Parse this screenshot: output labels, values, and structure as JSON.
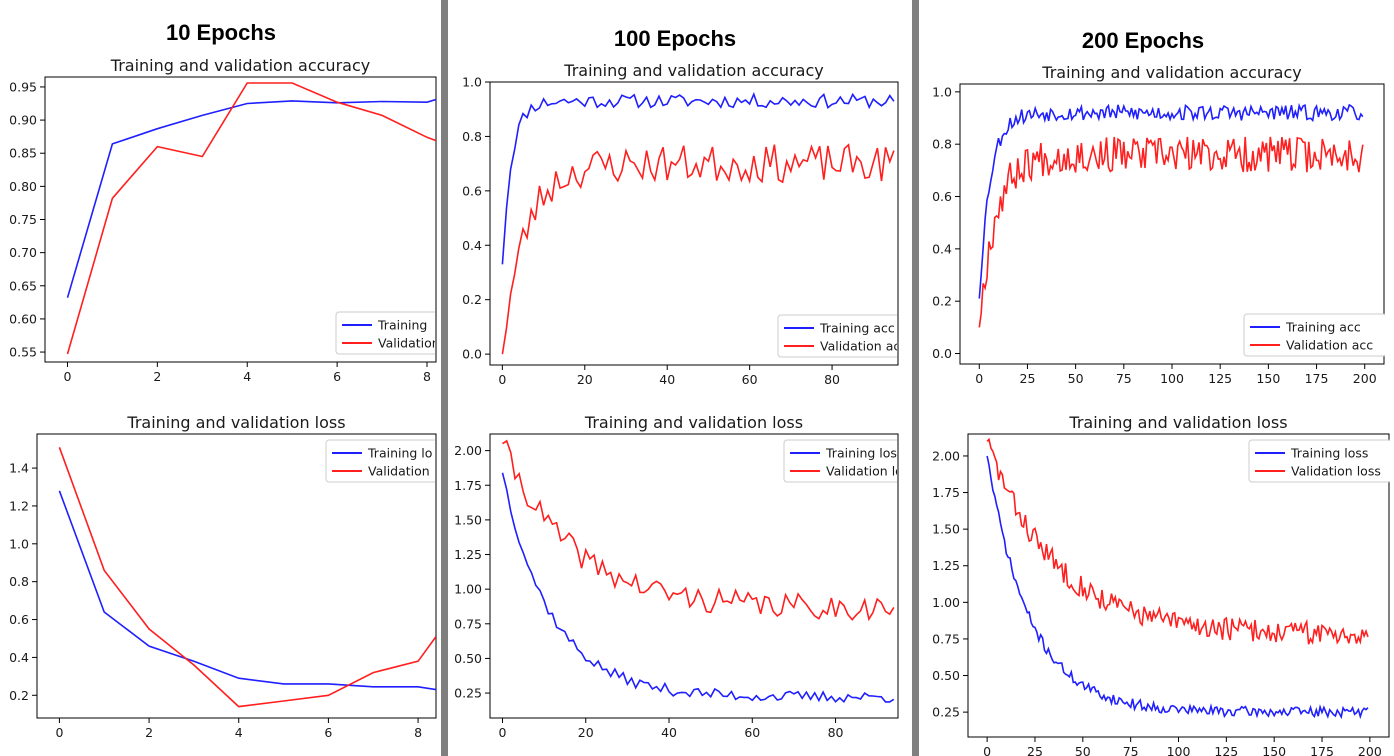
{
  "panels": [
    {
      "heading": "10 Epochs"
    },
    {
      "heading": "100 Epochs"
    },
    {
      "heading": "200 Epochs"
    }
  ],
  "colors": {
    "training": "#1f1fff",
    "validation": "#ff1f1f",
    "separator": "#7f7f7f"
  },
  "chart_data": [
    {
      "type": "line",
      "title": "Training and validation accuracy",
      "panel": "10 Epochs",
      "x_ticks": [
        0,
        2,
        4,
        6,
        8
      ],
      "y_ticks": [
        "0.55",
        "0.60",
        "0.65",
        "0.70",
        "0.75",
        "0.80",
        "0.85",
        "0.90",
        "0.95"
      ],
      "xlim": [
        -0.5,
        8.2
      ],
      "ylim": [
        0.535,
        0.965
      ],
      "legend": "bottom-right",
      "series": [
        {
          "name": "Training",
          "color": "#1f1fff",
          "x": [
            0,
            1,
            2,
            3,
            4,
            5,
            6,
            7,
            8,
            8.2
          ],
          "y": [
            0.632,
            0.864,
            0.887,
            0.907,
            0.925,
            0.929,
            0.926,
            0.928,
            0.927,
            0.931
          ]
        },
        {
          "name": "Validation",
          "color": "#ff1f1f",
          "x": [
            0,
            1,
            2,
            3,
            4,
            5,
            6,
            7,
            8,
            8.2
          ],
          "y": [
            0.547,
            0.782,
            0.86,
            0.845,
            0.956,
            0.956,
            0.927,
            0.907,
            0.874,
            0.869
          ]
        }
      ]
    },
    {
      "type": "line",
      "title": "Training and validation loss",
      "panel": "10 Epochs",
      "x_ticks": [
        0,
        2,
        4,
        6,
        8
      ],
      "y_ticks": [
        "0.2",
        "0.4",
        "0.6",
        "0.8",
        "1.0",
        "1.2",
        "1.4"
      ],
      "xlim": [
        -0.5,
        8.4
      ],
      "ylim": [
        0.08,
        1.58
      ],
      "legend": "top-right",
      "series": [
        {
          "name": "Training lo",
          "color": "#1f1fff",
          "x": [
            0,
            1,
            2,
            3,
            4,
            5,
            6,
            7,
            8,
            8.4
          ],
          "y": [
            1.28,
            0.64,
            0.46,
            0.38,
            0.29,
            0.26,
            0.26,
            0.245,
            0.245,
            0.23
          ]
        },
        {
          "name": "Validation",
          "color": "#ff1f1f",
          "x": [
            0,
            1,
            2,
            3,
            4,
            5,
            6,
            7,
            8,
            8.4
          ],
          "y": [
            1.51,
            0.86,
            0.55,
            0.36,
            0.14,
            0.17,
            0.2,
            0.32,
            0.38,
            0.51
          ]
        }
      ]
    },
    {
      "type": "line",
      "title": "Training and validation accuracy",
      "panel": "100 Epochs",
      "x_ticks": [
        0,
        20,
        40,
        60,
        80
      ],
      "y_ticks": [
        "0.0",
        "0.2",
        "0.4",
        "0.6",
        "0.8",
        "1.0"
      ],
      "xlim": [
        -3,
        96
      ],
      "ylim": [
        -0.04,
        1.0
      ],
      "legend": "bottom-right",
      "series": [
        {
          "name": "Training acc",
          "color": "#1f1fff",
          "generator": {
            "n": 96,
            "seed": 11,
            "model": "acc_train",
            "start": 0.33,
            "plateau": 0.93,
            "rate": 0.45,
            "noise": 0.025
          }
        },
        {
          "name": "Validation acc",
          "color": "#ff1f1f",
          "generator": {
            "n": 96,
            "seed": 23,
            "model": "acc_val",
            "start": 0.0,
            "plateau": 0.7,
            "rate": 0.18,
            "noise": 0.07
          }
        }
      ]
    },
    {
      "type": "line",
      "title": "Training and validation loss",
      "panel": "100 Epochs",
      "x_ticks": [
        0,
        20,
        40,
        60,
        80
      ],
      "y_ticks": [
        "0.25",
        "0.50",
        "0.75",
        "1.00",
        "1.25",
        "1.50",
        "1.75",
        "2.00"
      ],
      "xlim": [
        -3,
        95
      ],
      "ylim": [
        0.07,
        2.12
      ],
      "legend": "top-right",
      "series": [
        {
          "name": "Training loss",
          "color": "#1f1fff",
          "generator": {
            "n": 95,
            "seed": 37,
            "model": "loss_train",
            "start": 1.84,
            "floor": 0.22,
            "rate": 0.085,
            "noise": 0.04
          }
        },
        {
          "name": "Validation loss",
          "color": "#ff1f1f",
          "generator": {
            "n": 95,
            "seed": 41,
            "model": "loss_val",
            "start": 2.05,
            "floor": 0.86,
            "rate": 0.06,
            "noise": 0.09
          }
        }
      ]
    },
    {
      "type": "line",
      "title": "Training and validation accuracy",
      "panel": "200 Epochs",
      "x_ticks": [
        0,
        25,
        50,
        75,
        100,
        125,
        150,
        175,
        200
      ],
      "y_ticks": [
        "0.0",
        "0.2",
        "0.4",
        "0.6",
        "0.8",
        "1.0"
      ],
      "xlim": [
        -10,
        210
      ],
      "ylim": [
        -0.04,
        1.03
      ],
      "legend": "bottom-right",
      "series": [
        {
          "name": "Training acc",
          "color": "#1f1fff",
          "generator": {
            "n": 200,
            "seed": 53,
            "model": "acc_train",
            "start": 0.21,
            "plateau": 0.92,
            "rate": 0.18,
            "noise": 0.03
          }
        },
        {
          "name": "Validation acc",
          "color": "#ff1f1f",
          "generator": {
            "n": 200,
            "seed": 67,
            "model": "acc_val",
            "start": 0.1,
            "plateau": 0.76,
            "rate": 0.12,
            "noise": 0.07
          }
        }
      ]
    },
    {
      "type": "line",
      "title": "Training and validation loss",
      "panel": "200 Epochs",
      "x_ticks": [
        0,
        25,
        50,
        75,
        100,
        125,
        150,
        175,
        200
      ],
      "y_ticks": [
        "0.25",
        "0.50",
        "0.75",
        "1.00",
        "1.25",
        "1.50",
        "1.75",
        "2.00"
      ],
      "xlim": [
        -10,
        210
      ],
      "ylim": [
        0.08,
        2.15
      ],
      "legend": "top-right",
      "series": [
        {
          "name": "Training loss",
          "color": "#1f1fff",
          "generator": {
            "n": 200,
            "seed": 71,
            "model": "loss_train",
            "start": 2.0,
            "floor": 0.25,
            "rate": 0.045,
            "noise": 0.035
          }
        },
        {
          "name": "Validation loss",
          "color": "#ff1f1f",
          "generator": {
            "n": 200,
            "seed": 83,
            "model": "loss_val",
            "start": 2.1,
            "floor": 0.78,
            "rate": 0.028,
            "noise": 0.08
          }
        }
      ]
    }
  ]
}
